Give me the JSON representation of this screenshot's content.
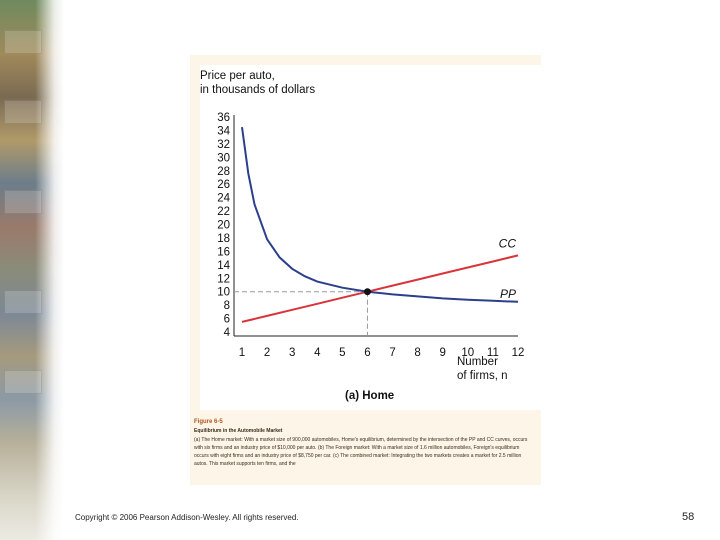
{
  "slide": {
    "copyright": "Copyright © 2006 Pearson Addison-Wesley. All rights reserved.",
    "page_number": "58"
  },
  "caption": {
    "figure_label": "Figure 6-5",
    "title": "Equilibrium in the Automobile Market",
    "body": "(a) The Home market: With a market size of 900,000 automobiles, Home's equilibrium, determined by the intersection of the PP and CC curves, occurs with six firms and an industry price of $10,000 per auto. (b) The Foreign market: With a market size of 1.6 million automobiles, Foreign's equilibrium occurs with eight firms and an industry price of $8,750 per car. (c) The combined market: Integrating the two markets creates a market for 2.5 million autos. This market supports ten firms, and the"
  },
  "chart_data": {
    "type": "line",
    "ylabel": "Price per auto, in thousands of dollars",
    "ylabel_lines": [
      "Price per auto,",
      "in thousands of dollars"
    ],
    "xlabel": "Number of firms, n",
    "xlabel_lines": [
      "Number",
      "of firms, n"
    ],
    "panel_label": "(a) Home",
    "x_ticks": [
      1,
      2,
      3,
      4,
      5,
      6,
      7,
      8,
      9,
      10,
      11,
      12
    ],
    "y_ticks": [
      4,
      6,
      8,
      10,
      12,
      14,
      16,
      18,
      20,
      22,
      24,
      26,
      28,
      30,
      32,
      34,
      36
    ],
    "xlim": [
      1,
      12
    ],
    "ylim": [
      4,
      36
    ],
    "grid": false,
    "series": [
      {
        "name": "CC",
        "color": "#d8343a",
        "x": [
          1,
          2,
          3,
          4,
          5,
          6,
          7,
          8,
          9,
          10,
          11,
          12
        ],
        "y": [
          5.5,
          6.4,
          7.3,
          8.2,
          9.1,
          10.0,
          10.9,
          11.8,
          12.7,
          13.6,
          14.5,
          15.4
        ]
      },
      {
        "name": "PP",
        "color": "#2b3f8c",
        "x": [
          1,
          1.25,
          1.5,
          2,
          2.5,
          3,
          3.5,
          4,
          5,
          6,
          7,
          8,
          9,
          10,
          11,
          12
        ],
        "y": [
          34.5,
          27.6,
          23.0,
          17.8,
          15.1,
          13.4,
          12.3,
          11.5,
          10.6,
          10.0,
          9.6,
          9.3,
          9.0,
          8.8,
          8.65,
          8.5
        ]
      }
    ],
    "equilibrium": {
      "x": 6,
      "y": 10
    }
  }
}
